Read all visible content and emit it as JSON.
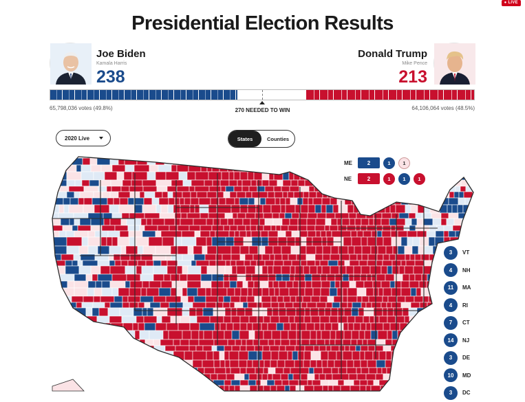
{
  "live_badge": "● LIVE",
  "title": "Presidential Election Results",
  "candidates": {
    "dem": {
      "name": "Joe Biden",
      "running_mate": "Kamala Harris",
      "electoral_votes": "238",
      "votes_text": "65,798,036 votes (49.8%)"
    },
    "rep": {
      "name": "Donald Trump",
      "running_mate": "Mike Pence",
      "electoral_votes": "213",
      "votes_text": "64,106,064 votes (48.5%)"
    }
  },
  "needed_to_win": "270 NEEDED TO WIN",
  "progress": {
    "dem_fraction": 0.442,
    "rep_fraction": 0.396,
    "total_ev": 538,
    "win_threshold": 270
  },
  "controls": {
    "year_select": {
      "selected": "2020 Live"
    },
    "view_toggle": {
      "active": "States",
      "inactive": "Counties"
    }
  },
  "district_splits": [
    {
      "state": "ME",
      "total": "2",
      "total_party": "dem",
      "districts": [
        {
          "value": "1",
          "party": "dem"
        },
        {
          "value": "1",
          "party": "lean-rep"
        }
      ]
    },
    {
      "state": "NE",
      "total": "2",
      "total_party": "rep",
      "districts": [
        {
          "value": "1",
          "party": "rep"
        },
        {
          "value": "1",
          "party": "dem"
        },
        {
          "value": "1",
          "party": "rep"
        }
      ]
    }
  ],
  "small_states": [
    {
      "ev": "3",
      "abbr": "VT"
    },
    {
      "ev": "4",
      "abbr": "NH"
    },
    {
      "ev": "11",
      "abbr": "MA"
    },
    {
      "ev": "4",
      "abbr": "RI"
    },
    {
      "ev": "7",
      "abbr": "CT"
    },
    {
      "ev": "14",
      "abbr": "NJ"
    },
    {
      "ev": "3",
      "abbr": "DE"
    },
    {
      "ev": "10",
      "abbr": "MD"
    },
    {
      "ev": "3",
      "abbr": "DC"
    }
  ],
  "colors": {
    "dem": "#1a4b8c",
    "dem_light": "#dfeaf6",
    "rep": "#c8102e",
    "rep_light": "#fbe3e6",
    "uncalled": "#ffffff",
    "border": "#333333",
    "county_line": "#ffffff"
  },
  "icons": {
    "year_select_caret": "caret-down-icon",
    "win_marker": "triangle-up-icon"
  }
}
